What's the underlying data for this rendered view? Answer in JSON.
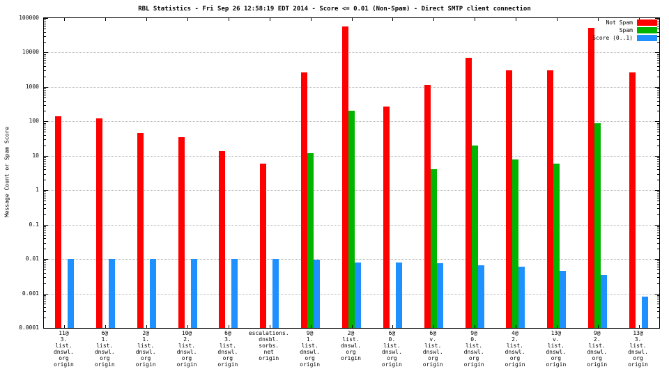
{
  "chart_data": {
    "type": "bar",
    "title": "RBL Statistics - Fri Sep 26 12:58:19 EDT 2014 - Score <= 0.01 (Non-Spam) - Direct SMTP client connection",
    "ylabel": "Message Count or Spam Score",
    "xlabel": "",
    "yscale": "log",
    "ylim": [
      0.0001,
      100000
    ],
    "ytick_labels": [
      "100000",
      "10000",
      "1000",
      "100",
      "10",
      "1",
      "0.1",
      "0.01",
      "0.001",
      "0.0001"
    ],
    "grid": "dotted-horizontal-decades",
    "legend_position": "top-right",
    "categories": [
      [
        "11@",
        "3.",
        "list.",
        "dnswl.",
        "org",
        "origin"
      ],
      [
        "6@",
        "1.",
        "list.",
        "dnswl.",
        "org",
        "origin"
      ],
      [
        "2@",
        "1.",
        "list.",
        "dnswl.",
        "org",
        "origin"
      ],
      [
        "10@",
        "2.",
        "list.",
        "dnswl.",
        "org",
        "origin"
      ],
      [
        "6@",
        "3.",
        "list.",
        "dnswl.",
        "org",
        "origin"
      ],
      [
        "escalations.",
        "dnsbl.",
        "sorbs.",
        "net",
        "origin"
      ],
      [
        "9@",
        "1.",
        "list.",
        "dnswl.",
        "org",
        "origin"
      ],
      [
        "2@",
        "list.",
        "dnswl.",
        "org",
        "origin"
      ],
      [
        "6@",
        "0.",
        "list.",
        "dnswl.",
        "org",
        "origin"
      ],
      [
        "6@",
        "v.",
        "list.",
        "dnswl.",
        "org",
        "origin"
      ],
      [
        "9@",
        "0.",
        "list.",
        "dnswl.",
        "org",
        "origin"
      ],
      [
        "4@",
        "2.",
        "list.",
        "dnswl.",
        "org",
        "origin"
      ],
      [
        "13@",
        "v.",
        "list.",
        "dnswl.",
        "org",
        "origin"
      ],
      [
        "9@",
        "2.",
        "list.",
        "dnswl.",
        "org",
        "origin"
      ],
      [
        "13@",
        "3.",
        "list.",
        "dnswl.",
        "org",
        "origin"
      ]
    ],
    "series": [
      {
        "name": "Not Spam",
        "color": "#ff0000",
        "values": [
          140,
          120,
          45,
          35,
          14,
          6,
          2600,
          58000,
          270,
          1150,
          7000,
          3000,
          3000,
          52000,
          2600
        ]
      },
      {
        "name": "Spam",
        "color": "#00b400",
        "values": [
          0,
          0,
          0,
          0,
          0,
          0,
          12,
          200,
          0,
          4,
          20,
          8,
          6,
          90,
          0
        ]
      },
      {
        "name": "Score (0..1)",
        "color": "#1e90ff",
        "values": [
          0.01,
          0.01,
          0.01,
          0.01,
          0.01,
          0.01,
          0.0095,
          0.008,
          0.008,
          0.0075,
          0.0065,
          0.006,
          0.0045,
          0.0035,
          0.0008
        ]
      }
    ]
  }
}
